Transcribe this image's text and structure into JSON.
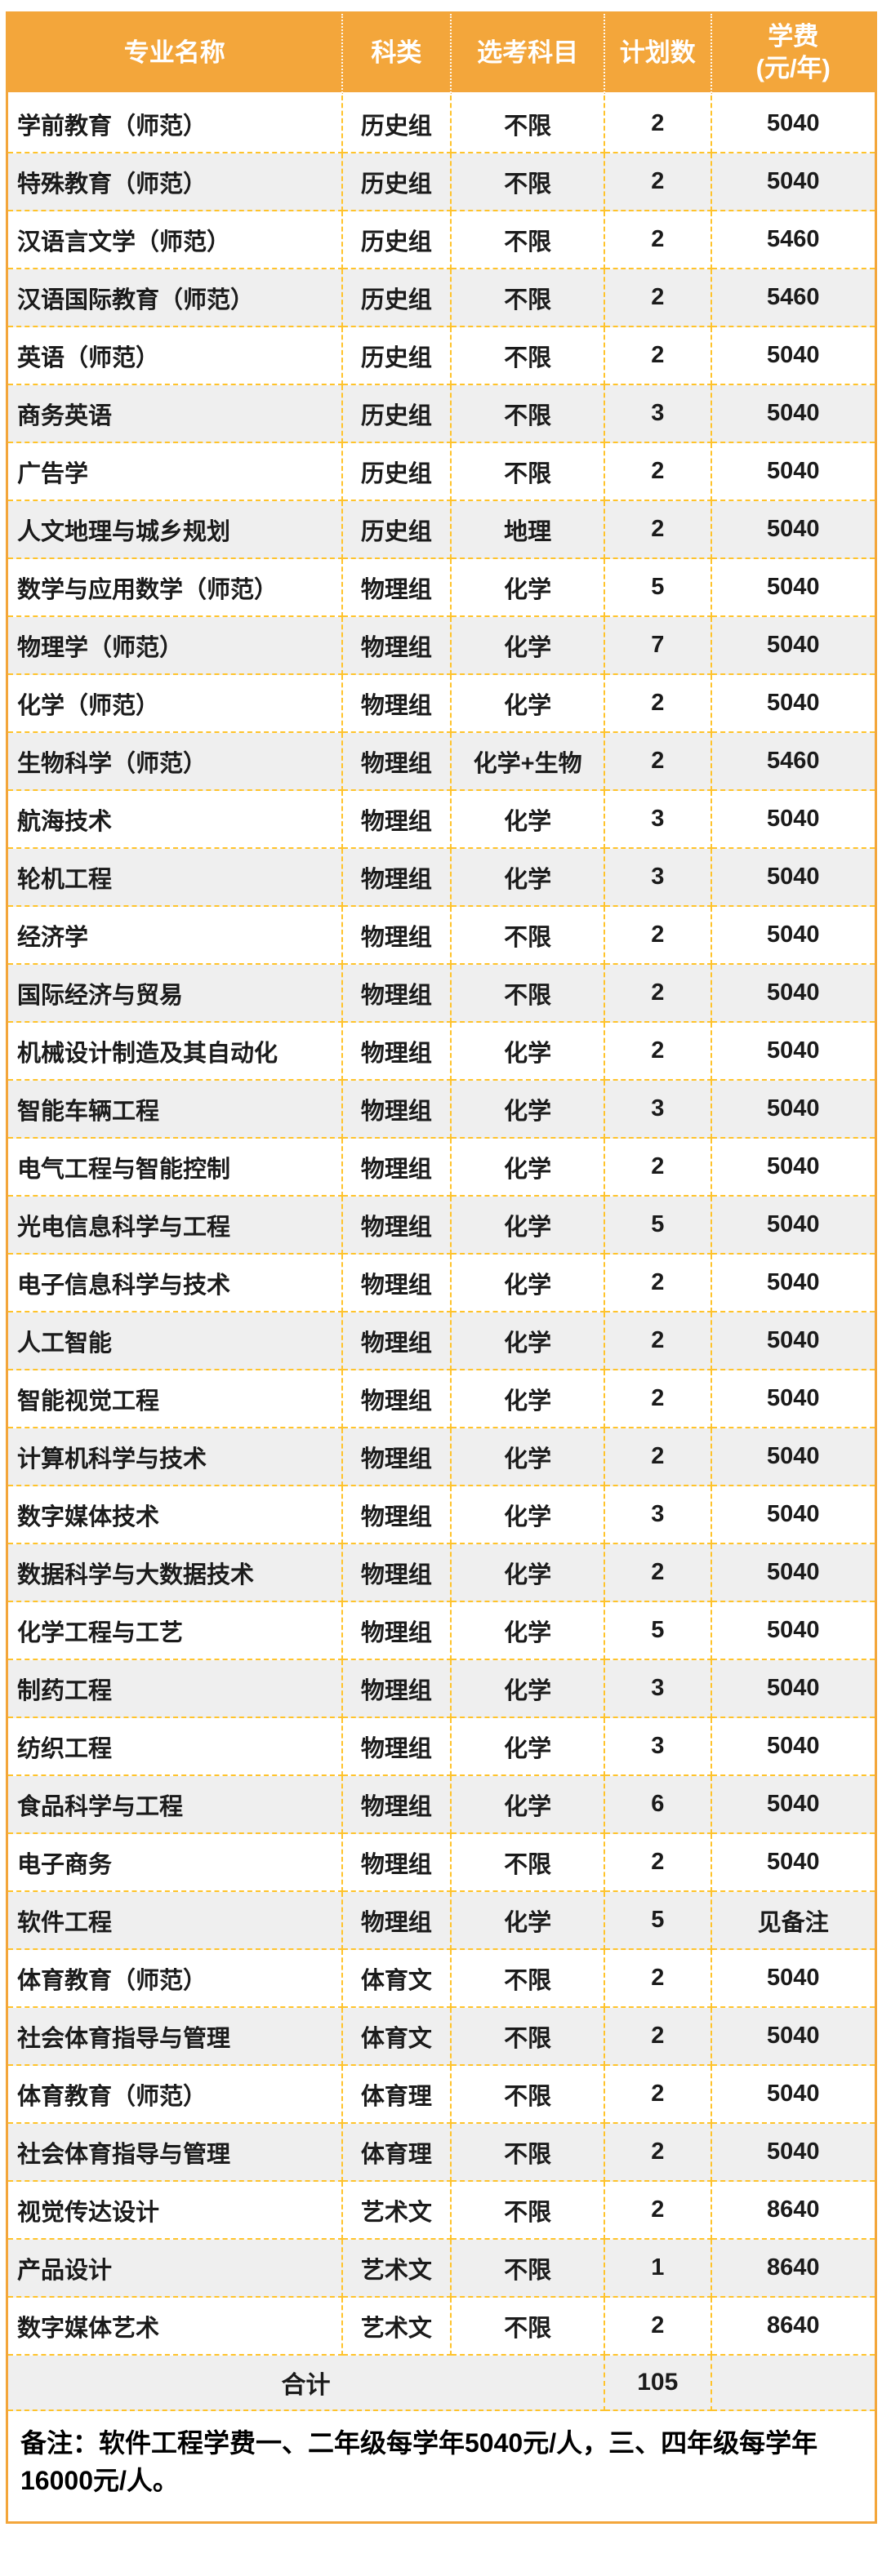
{
  "colors": {
    "accent_orange": "#F3A63B",
    "grid_dashed_yellow": "#FFC32B",
    "row_alt_gray": "#EFEFEF",
    "header_text": "#FFFFFF",
    "body_text": "#1B1B1B"
  },
  "table": {
    "headers": [
      "专业名称",
      "科类",
      "选考科目",
      "计划数",
      "学费\n(元/年)"
    ],
    "rows": [
      [
        "学前教育（师范）",
        "历史组",
        "不限",
        "2",
        "5040"
      ],
      [
        "特殊教育（师范）",
        "历史组",
        "不限",
        "2",
        "5040"
      ],
      [
        "汉语言文学（师范）",
        "历史组",
        "不限",
        "2",
        "5460"
      ],
      [
        "汉语国际教育（师范）",
        "历史组",
        "不限",
        "2",
        "5460"
      ],
      [
        "英语（师范）",
        "历史组",
        "不限",
        "2",
        "5040"
      ],
      [
        "商务英语",
        "历史组",
        "不限",
        "3",
        "5040"
      ],
      [
        "广告学",
        "历史组",
        "不限",
        "2",
        "5040"
      ],
      [
        "人文地理与城乡规划",
        "历史组",
        "地理",
        "2",
        "5040"
      ],
      [
        "数学与应用数学（师范）",
        "物理组",
        "化学",
        "5",
        "5040"
      ],
      [
        "物理学（师范）",
        "物理组",
        "化学",
        "7",
        "5040"
      ],
      [
        "化学（师范）",
        "物理组",
        "化学",
        "2",
        "5040"
      ],
      [
        "生物科学（师范）",
        "物理组",
        "化学+生物",
        "2",
        "5460"
      ],
      [
        "航海技术",
        "物理组",
        "化学",
        "3",
        "5040"
      ],
      [
        "轮机工程",
        "物理组",
        "化学",
        "3",
        "5040"
      ],
      [
        "经济学",
        "物理组",
        "不限",
        "2",
        "5040"
      ],
      [
        "国际经济与贸易",
        "物理组",
        "不限",
        "2",
        "5040"
      ],
      [
        "机械设计制造及其自动化",
        "物理组",
        "化学",
        "2",
        "5040"
      ],
      [
        "智能车辆工程",
        "物理组",
        "化学",
        "3",
        "5040"
      ],
      [
        "电气工程与智能控制",
        "物理组",
        "化学",
        "2",
        "5040"
      ],
      [
        "光电信息科学与工程",
        "物理组",
        "化学",
        "5",
        "5040"
      ],
      [
        "电子信息科学与技术",
        "物理组",
        "化学",
        "2",
        "5040"
      ],
      [
        "人工智能",
        "物理组",
        "化学",
        "2",
        "5040"
      ],
      [
        "智能视觉工程",
        "物理组",
        "化学",
        "2",
        "5040"
      ],
      [
        "计算机科学与技术",
        "物理组",
        "化学",
        "2",
        "5040"
      ],
      [
        "数字媒体技术",
        "物理组",
        "化学",
        "3",
        "5040"
      ],
      [
        "数据科学与大数据技术",
        "物理组",
        "化学",
        "2",
        "5040"
      ],
      [
        "化学工程与工艺",
        "物理组",
        "化学",
        "5",
        "5040"
      ],
      [
        "制药工程",
        "物理组",
        "化学",
        "3",
        "5040"
      ],
      [
        "纺织工程",
        "物理组",
        "化学",
        "3",
        "5040"
      ],
      [
        "食品科学与工程",
        "物理组",
        "化学",
        "6",
        "5040"
      ],
      [
        "电子商务",
        "物理组",
        "不限",
        "2",
        "5040"
      ],
      [
        "软件工程",
        "物理组",
        "化学",
        "5",
        "见备注"
      ],
      [
        "体育教育（师范）",
        "体育文",
        "不限",
        "2",
        "5040"
      ],
      [
        "社会体育指导与管理",
        "体育文",
        "不限",
        "2",
        "5040"
      ],
      [
        "体育教育（师范）",
        "体育理",
        "不限",
        "2",
        "5040"
      ],
      [
        "社会体育指导与管理",
        "体育理",
        "不限",
        "2",
        "5040"
      ],
      [
        "视觉传达设计",
        "艺术文",
        "不限",
        "2",
        "8640"
      ],
      [
        "产品设计",
        "艺术文",
        "不限",
        "1",
        "8640"
      ],
      [
        "数字媒体艺术",
        "艺术文",
        "不限",
        "2",
        "8640"
      ]
    ],
    "total": {
      "label": "合计",
      "plan_total": "105"
    }
  },
  "note": "备注：软件工程学费一、二年级每学年5040元/人，三、四年级每学年16000元/人。"
}
